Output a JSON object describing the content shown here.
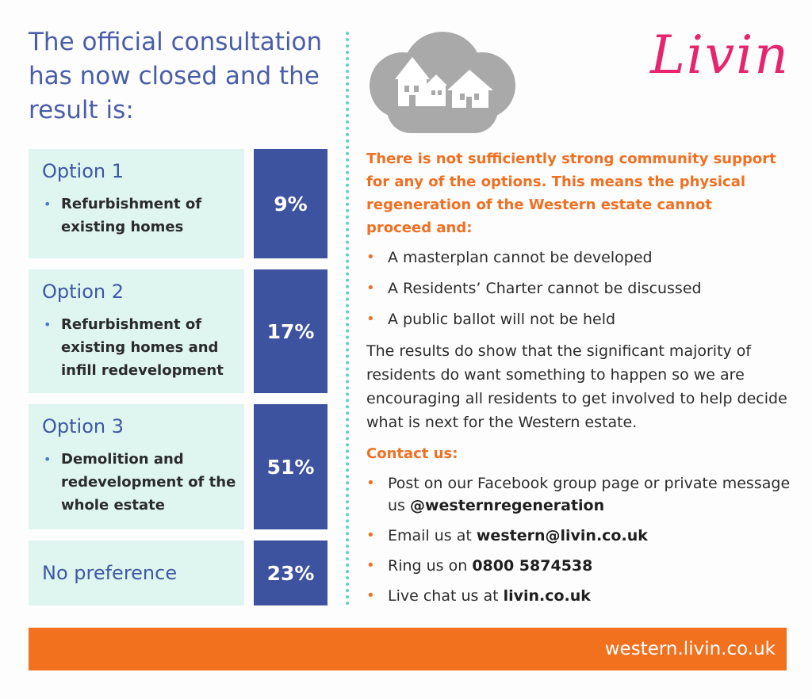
{
  "heading": "The official consultation has now closed and the result is:",
  "options": [
    {
      "title": "Option 1",
      "bullet": "Refurbishment of existing homes",
      "percent": "9%"
    },
    {
      "title": "Option 2",
      "bullet": "Refurbishment of existing homes and infill redevelopment",
      "percent": "17%"
    },
    {
      "title": "Option 3",
      "bullet": "Demolition and redevelopment of the whole estate",
      "percent": "51%"
    }
  ],
  "no_preference": {
    "label": "No preference",
    "percent": "23%"
  },
  "logo": "Livin",
  "statement": "There is not sufficiently strong community support for any of the options. This means the physical regeneration of the Western estate cannot proceed and:",
  "consequences": [
    "A masterplan cannot be developed",
    "A Residents’ Charter cannot be discussed",
    "A public ballot will not be held"
  ],
  "paragraph": "The results do show that the significant majority of residents do want something to happen so we are encouraging all residents to get involved to help decide what is next for the Western estate.",
  "contact": {
    "heading": "Contact us:",
    "facebook_text": "Post on our Facebook group page or private message us ",
    "facebook_handle": "@westernregeneration",
    "email_text": "Email us at ",
    "email": "western@livin.co.uk",
    "phone_text": "Ring us on ",
    "phone": "0800 5874538",
    "chat_text": "Live chat us at ",
    "chat_site": "livin.co.uk"
  },
  "footer_url": "western.livin.co.uk",
  "colors": {
    "blue_heading": "#4a5ea8",
    "option_bg": "#def5f0",
    "percent_bg": "#3e53a0",
    "orange": "#f07023",
    "logo_pink": "#e6256e",
    "divider_teal": "#5fd1c2"
  }
}
